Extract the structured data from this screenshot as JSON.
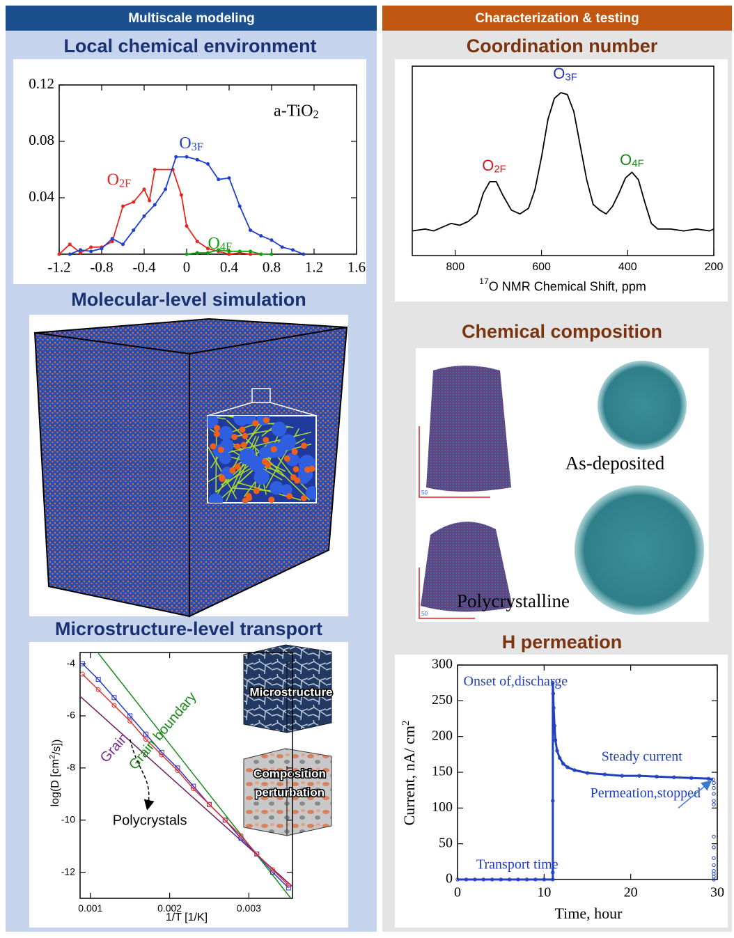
{
  "headers": {
    "left": "Multiscale modeling",
    "right": "Characterization & testing"
  },
  "sections": {
    "local": "Local chemical environment",
    "molecular": "Molecular-level simulation",
    "microstructure": "Microstructure-level transport",
    "coordination": "Coordination number",
    "composition": "Chemical composition",
    "permeation": "H permeation"
  },
  "images": {
    "microstructure": "Microstructure",
    "composition_perturbation": [
      "Composition",
      "perturbation"
    ],
    "as_deposited": "As-deposited",
    "polycrystalline": "Polycrystalline",
    "scale_bar": "50"
  },
  "chart_data": [
    {
      "type": "line",
      "xlim": [
        -1.2,
        1.6
      ],
      "ylim": [
        0,
        0.12
      ],
      "xticks": [
        -1.2,
        -0.8,
        -0.4,
        0,
        0.4,
        0.8,
        1.2,
        1.6
      ],
      "yticks": [
        0.04,
        0.08,
        0.12
      ],
      "series": [
        {
          "color": "#e8251f",
          "x": [
            -1.2,
            -1.1,
            -1.0,
            -0.9,
            -0.8,
            -0.7,
            -0.6,
            -0.5,
            -0.4,
            -0.35,
            -0.3,
            -0.13,
            -0.05,
            0.0,
            0.1,
            0.2,
            0.3,
            0.4,
            0.5,
            0.6,
            0.7
          ],
          "values": [
            0,
            0.007,
            0.001,
            0.005,
            0.005,
            0.009,
            0.034,
            0.037,
            0.046,
            0.038,
            0.06,
            0.06,
            0.042,
            0.02,
            0.009,
            0.004,
            0.002,
            0,
            0.001,
            0,
            0
          ]
        },
        {
          "color": "#1f3fd0",
          "x": [
            -1.1,
            -1.0,
            -0.9,
            -0.8,
            -0.7,
            -0.6,
            -0.5,
            -0.4,
            -0.3,
            -0.2,
            -0.1,
            0,
            0.1,
            0.2,
            0.3,
            0.4,
            0.5,
            0.6,
            0.7,
            0.8,
            0.9,
            1.0,
            1.1
          ],
          "values": [
            0,
            0.003,
            0.002,
            0.004,
            0.011,
            0.007,
            0.017,
            0.027,
            0.035,
            0.046,
            0.069,
            0.069,
            0.067,
            0.064,
            0.053,
            0.054,
            0.034,
            0.017,
            0.013,
            0.01,
            0.005,
            0.003,
            0
          ]
        },
        {
          "color": "#10a010",
          "x": [
            0,
            0.1,
            0.2,
            0.3,
            0.4,
            0.5,
            0.6,
            0.7,
            0.8
          ],
          "values": [
            0,
            0.001,
            0.001,
            0.003,
            0.002,
            0.002,
            0.002,
            0,
            0
          ]
        }
      ],
      "annotations": [
        {
          "text": "a-TiO",
          "sub": "2",
          "color": "#000000"
        },
        {
          "text": "O",
          "sub": "2F",
          "color": "#e8251f"
        },
        {
          "text": "O",
          "sub": "3F",
          "color": "#1f3fd0"
        },
        {
          "text": "O",
          "sub": "4F",
          "color": "#10a010"
        }
      ]
    },
    {
      "type": "line",
      "xlim": [
        900,
        200
      ],
      "ylim": [
        0,
        1
      ],
      "xticks": [
        800,
        600,
        400,
        200
      ],
      "xlabel": {
        "sup": "17",
        "text": "O NMR Chemical Shift, ppm"
      },
      "color": "#000000",
      "x": [
        900,
        870,
        850,
        830,
        810,
        790,
        770,
        750,
        735,
        720,
        705,
        690,
        670,
        650,
        630,
        615,
        600,
        585,
        570,
        555,
        540,
        525,
        510,
        495,
        480,
        465,
        450,
        435,
        420,
        405,
        390,
        375,
        360,
        345,
        330,
        300,
        270,
        240,
        210,
        200
      ],
      "values": [
        0.13,
        0.14,
        0.13,
        0.15,
        0.17,
        0.16,
        0.18,
        0.22,
        0.33,
        0.39,
        0.39,
        0.32,
        0.24,
        0.22,
        0.25,
        0.35,
        0.52,
        0.72,
        0.83,
        0.86,
        0.85,
        0.76,
        0.58,
        0.4,
        0.27,
        0.24,
        0.22,
        0.26,
        0.33,
        0.41,
        0.44,
        0.4,
        0.28,
        0.17,
        0.14,
        0.14,
        0.13,
        0.14,
        0.13,
        0.14
      ],
      "annotations": [
        {
          "text": "O",
          "sub": "2F",
          "color": "#d01818"
        },
        {
          "text": "O",
          "sub": "3F",
          "color": "#1f2fc0"
        },
        {
          "text": "O",
          "sub": "4F",
          "color": "#108a10"
        }
      ]
    },
    {
      "type": "line",
      "xlim": [
        0.00087,
        0.00355
      ],
      "ylim": [
        -13,
        -3.57
      ],
      "xticks": [
        0.001,
        0.002,
        0.003
      ],
      "yticks": [
        -12,
        -10,
        -8,
        -6,
        -4
      ],
      "xlabel": "1/T [1/K]",
      "ylabel": {
        "text": "log(D [cm",
        "sup": "2",
        "after": "/s])"
      },
      "series": [
        {
          "color": "#1a8a1a",
          "x": [
            0.0011,
            0.00353
          ],
          "values": [
            -3.6,
            -13
          ]
        },
        {
          "color": "#6a1a5a",
          "x": [
            0.00087,
            0.00355
          ],
          "values": [
            -5.25,
            -12.55
          ]
        },
        {
          "color": "#2838c8",
          "marker": "square",
          "x": [
            0.0009,
            0.0011,
            0.0013,
            0.0015,
            0.0017,
            0.0019,
            0.0021,
            0.0023,
            0.0025,
            0.0027,
            0.0029,
            0.0031,
            0.0033,
            0.0035
          ],
          "values": [
            -4.0,
            -4.6,
            -5.3,
            -6.0,
            -6.7,
            -7.4,
            -8.0,
            -8.7,
            -9.4,
            -10.0,
            -10.7,
            -11.3,
            -12.0,
            -12.6
          ]
        },
        {
          "color": "#e03030",
          "marker": "circle",
          "x": [
            0.0009,
            0.0011,
            0.0013,
            0.0015,
            0.0017,
            0.0019,
            0.0021,
            0.0023,
            0.0025,
            0.0027,
            0.0029,
            0.0031,
            0.0033,
            0.0035
          ],
          "values": [
            -4.4,
            -5.0,
            -5.6,
            -6.2,
            -6.9,
            -7.5,
            -8.1,
            -8.8,
            -9.4,
            -10.0,
            -10.6,
            -11.3,
            -11.9,
            -12.5
          ]
        }
      ],
      "annotations": [
        {
          "text": "Grain boundary",
          "color": "#1a8a1a"
        },
        {
          "text": "Grain",
          "color": "#7a2a8a"
        },
        {
          "text": "Polycrystals",
          "color": "#000000"
        }
      ]
    },
    {
      "type": "scatter",
      "xlim": [
        0,
        30
      ],
      "ylim": [
        0,
        300
      ],
      "xticks": [
        0,
        10,
        20,
        30
      ],
      "yticks": [
        0,
        50,
        100,
        150,
        200,
        250,
        300
      ],
      "xlabel": "Time, hour",
      "ylabel": {
        "text": "Current, nA/ cm",
        "sup": "2"
      },
      "series": [
        {
          "color": "#2040c0",
          "marker": "circle",
          "x": [
            0,
            1,
            2,
            3,
            4,
            5,
            6,
            7,
            8,
            9,
            10,
            11,
            11,
            11.05,
            11.1,
            11.2,
            11.3,
            11.5,
            11.8,
            12.2,
            12.7,
            13.5,
            15,
            17,
            19,
            21,
            23,
            25,
            27,
            29,
            29.5
          ],
          "values": [
            0,
            0,
            0,
            0,
            0,
            0,
            0,
            0,
            0,
            0,
            0,
            0,
            275,
            260,
            240,
            215,
            195,
            180,
            170,
            162,
            157,
            153,
            149,
            147,
            145,
            145,
            144,
            143,
            142,
            141,
            140
          ]
        },
        {
          "color": "#2040c0",
          "marker": "circle",
          "line": false,
          "x": [
            11,
            11,
            29.6,
            29.6,
            29.6,
            29.6,
            29.6,
            29.6,
            29.6,
            29.6,
            29.6,
            29.6,
            29.6,
            29.6,
            29.6
          ],
          "values": [
            110,
            10,
            135,
            128,
            120,
            110,
            105,
            60,
            45,
            30,
            20,
            12,
            8,
            4,
            0
          ]
        }
      ],
      "annotations": [
        {
          "text": [
            "Onset of",
            "discharge"
          ],
          "color": "#1f3fbf"
        },
        {
          "text": "Steady current",
          "color": "#1f3fbf"
        },
        {
          "text": [
            "Permeation",
            "stopped"
          ],
          "color": "#1f3fbf"
        },
        {
          "text": "Transport time",
          "color": "#1f3fbf"
        }
      ]
    }
  ]
}
